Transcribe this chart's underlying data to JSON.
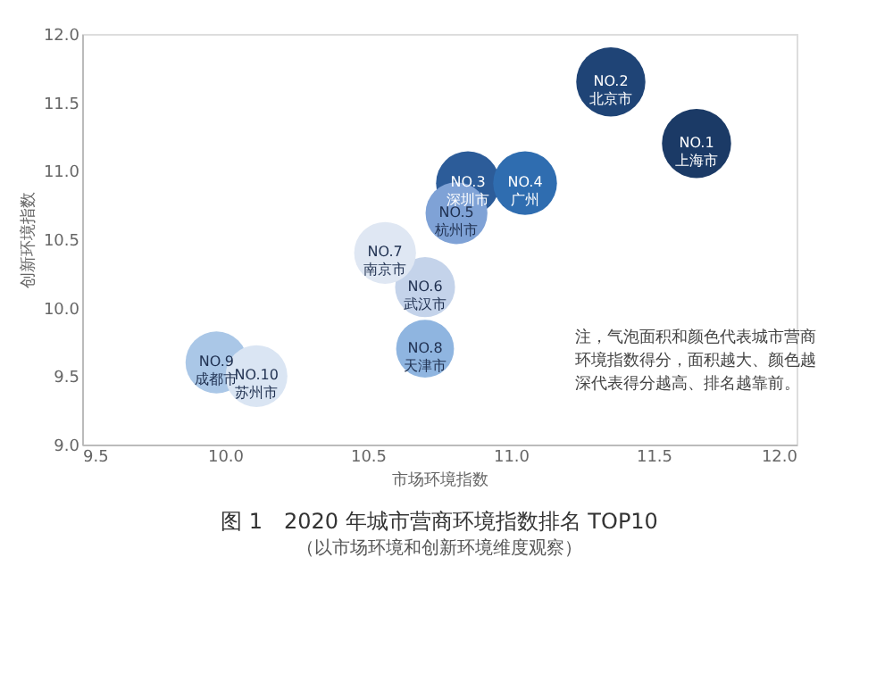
{
  "chart_data": {
    "type": "bubble",
    "title": "图 1　2020 年城市营商环境指数排名 TOP10",
    "subtitle": "（以市场环境和创新环境维度观察）",
    "xlabel": "市场环境指数",
    "ylabel": "创新环境指数",
    "x": [
      11.65,
      11.35,
      10.85,
      11.05,
      10.81,
      10.7,
      10.56,
      10.7,
      9.97,
      10.11
    ],
    "values": [
      11.2,
      11.65,
      10.91,
      10.91,
      10.69,
      10.15,
      10.4,
      9.7,
      9.6,
      9.5
    ],
    "sizes": [
      1,
      1,
      0.85,
      0.85,
      0.8,
      0.75,
      0.8,
      0.7,
      0.8,
      0.8
    ],
    "colors": [
      "#1b3a66",
      "#1f4476",
      "#2c5c99",
      "#2f6db0",
      "#7fa2d6",
      "#c4d3ea",
      "#dfe7f3",
      "#8fb5e0",
      "#aac7e7",
      "#dae5f3"
    ],
    "annotations": [
      {
        "text": "NO.1\n上海市",
        "x": 11.65,
        "y": 11.2
      },
      {
        "text": "NO.2\n北京市",
        "x": 11.35,
        "y": 11.65
      },
      {
        "text": "NO.3\n深圳市",
        "x": 10.85,
        "y": 10.91
      },
      {
        "text": "NO.4\n广州",
        "x": 11.05,
        "y": 10.91
      },
      {
        "text": "NO.5\n杭州市",
        "x": 10.81,
        "y": 10.69
      },
      {
        "text": "NO.6\n武汉市",
        "x": 10.7,
        "y": 10.15
      },
      {
        "text": "NO.7\n南京市",
        "x": 10.56,
        "y": 10.4
      },
      {
        "text": "NO.8\n天津市",
        "x": 10.7,
        "y": 9.7
      },
      {
        "text": "NO.9\n成都市",
        "x": 9.97,
        "y": 9.6
      },
      {
        "text": "NO.10\n苏州市",
        "x": 10.11,
        "y": 9.5
      },
      "注，气泡面积和颜色代表城市营商环境指数得分，面积越大、颜色越深代表得分越高、排名越靠前。"
    ],
    "xlim": [
      9.5,
      12.0
    ],
    "ylim": [
      9.0,
      12.0
    ],
    "xticks": [
      9.5,
      {
        "value": 10,
        "label": "10.0"
      },
      10.5,
      {
        "value": 11,
        "label": "11.0"
      },
      11.5,
      {
        "value": 12,
        "label": "12.0"
      }
    ],
    "yticks": [
      {
        "value": 9,
        "label": "9.0"
      },
      9.5,
      {
        "value": 10,
        "label": "10.0"
      },
      10.5,
      {
        "value": 11,
        "label": "11.0"
      },
      11.5,
      {
        "value": 12,
        "label": "12.0"
      }
    ],
    "grid": false,
    "legend": false
  }
}
